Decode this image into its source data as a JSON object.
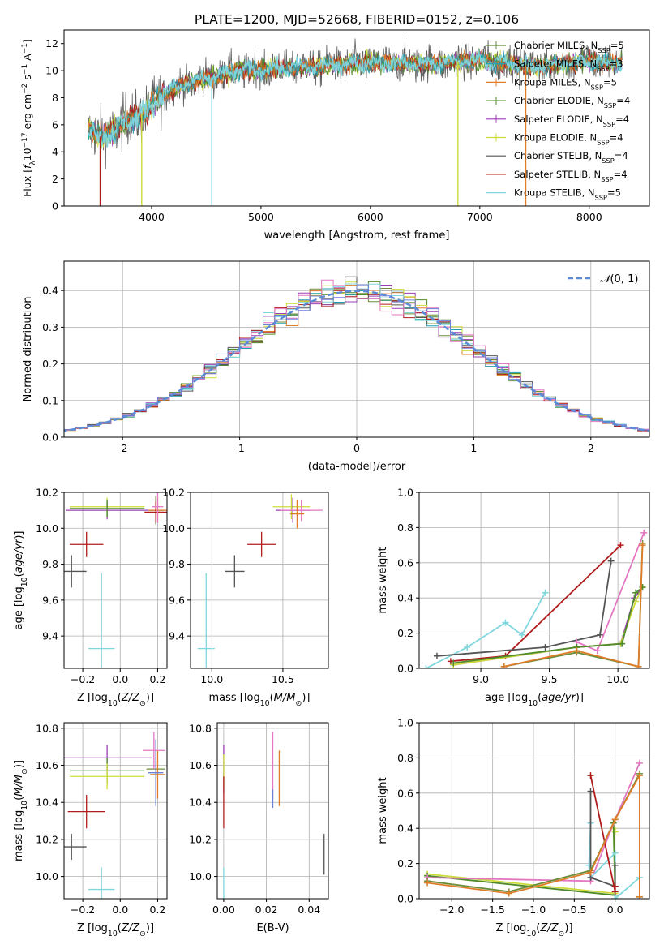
{
  "figure_title": "PLATE=1200, MJD=52668, FIBERID=0152, z=0.106",
  "colors": {
    "chabrier_miles": "#6b8e3a",
    "salpeter_miles": "#1f9fb0",
    "kroupa_miles": "#e07b28",
    "chabrier_elodie": "#4f8a2b",
    "salpeter_elodie": "#9b3fb5",
    "kroupa_elodie": "#cddc39",
    "chabrier_stelib": "#555555",
    "salpeter_stelib": "#b01c1c",
    "kroupa_stelib": "#7fd6dd",
    "gauss": "#5b8bd6",
    "pink": "#e377c2",
    "blue": "#6a7fd8",
    "orange": "#e07b28",
    "grid": "#b0b0b0"
  },
  "chart_data": [
    {
      "id": "spectrum",
      "type": "line",
      "title": "",
      "xlabel": "wavelength [Angstrom, rest frame]",
      "ylabel": "Flux [f_λ10^-17 erg cm^-2 s^-1 A^-1]",
      "xlim": [
        3200,
        8550
      ],
      "ylim": [
        0,
        13
      ],
      "xticks": [
        4000,
        5000,
        6000,
        7000,
        8000
      ],
      "yticks": [
        0,
        2,
        4,
        6,
        8,
        10,
        12
      ],
      "grid": false,
      "legend_position": "top-right",
      "legend": [
        "Chabrier MILES, N_SSP=5",
        "Salpeter MILES, N_SSP=3",
        "Kroupa MILES, N_SSP=5",
        "Chabrier ELODIE, N_SSP=4",
        "Salpeter ELODIE, N_SSP=4",
        "Kroupa ELODIE, N_SSP=4",
        "Chabrier STELIB, N_SSP=4",
        "Salpeter STELIB, N_SSP=4",
        "Kroupa STELIB, N_SSP=5"
      ],
      "continuum": {
        "x": [
          3420,
          3550,
          3650,
          3800,
          3950,
          4100,
          4300,
          4600,
          4800,
          5000,
          5500,
          6000,
          6500,
          7000,
          7500,
          8000,
          8300
        ],
        "y": [
          5.8,
          5.0,
          5.6,
          6.4,
          7.0,
          8.3,
          9.0,
          9.6,
          10.0,
          10.1,
          10.3,
          10.6,
          10.5,
          10.8,
          10.3,
          10.7,
          10.5
        ]
      },
      "dips": [
        {
          "x": 3530,
          "y": 0
        },
        {
          "x": 3910,
          "y": 0
        },
        {
          "x": 4550,
          "y": 0
        },
        {
          "x": 6800,
          "y": 0
        },
        {
          "x": 7420,
          "y": 0
        }
      ]
    },
    {
      "id": "residual_hist",
      "type": "line",
      "xlabel": "(data-model)/error",
      "ylabel": "Normed distribution",
      "xlim": [
        -2.5,
        2.5
      ],
      "ylim": [
        0,
        0.48
      ],
      "xticks": [
        -2,
        -1,
        0,
        1,
        2
      ],
      "yticks": [
        0.0,
        0.1,
        0.2,
        0.3,
        0.4
      ],
      "grid": true,
      "legend": [
        "𝒩(0, 1)"
      ],
      "legend_position": "top-right",
      "bin_width": 0.1
    },
    {
      "id": "age_vs_Z",
      "type": "scatter",
      "xlabel": "Z [log10(Z/Z☉)]",
      "ylabel": "age [log10(age/yr)]",
      "xlim": [
        -0.3,
        0.25
      ],
      "ylim": [
        9.22,
        10.2
      ],
      "xticks": [
        -0.2,
        0.0,
        0.2
      ],
      "yticks": [
        9.4,
        9.6,
        9.8,
        10.0,
        10.2
      ],
      "xticklabels": [
        "−0.2",
        "0.0",
        "0.2"
      ],
      "grid": true,
      "points": [
        {
          "x": 0.19,
          "y": 10.1,
          "xerr": 0.04,
          "yerr": 0.08,
          "color": "chabrier_miles"
        },
        {
          "x": 0.2,
          "y": 10.1,
          "xerr": 0.05,
          "yerr": 0.07,
          "color": "kroupa_miles"
        },
        {
          "x": 0.19,
          "y": 10.09,
          "xerr": 0.06,
          "yerr": 0.06,
          "color": "salpeter_stelib"
        },
        {
          "x": -0.07,
          "y": 10.12,
          "xerr": 0.2,
          "yerr": 0.05,
          "color": "kroupa_elodie"
        },
        {
          "x": -0.07,
          "y": 10.1,
          "xerr": 0.22,
          "yerr": 0.05,
          "color": "salpeter_elodie"
        },
        {
          "x": -0.07,
          "y": 10.11,
          "xerr": 0.2,
          "yerr": 0.05,
          "color": "chabrier_elodie"
        },
        {
          "x": 0.2,
          "y": 10.12,
          "xerr": 0.03,
          "yerr": 0.09,
          "color": "pink"
        },
        {
          "x": -0.18,
          "y": 9.91,
          "xerr": 0.09,
          "yerr": 0.07,
          "color": "salpeter_stelib"
        },
        {
          "x": -0.26,
          "y": 9.76,
          "xerr": 0.08,
          "yerr": 0.09,
          "color": "chabrier_stelib"
        },
        {
          "x": -0.1,
          "y": 9.33,
          "xerr": 0.07,
          "yerr": 0.42,
          "color": "kroupa_stelib"
        }
      ]
    },
    {
      "id": "age_vs_mass",
      "type": "scatter",
      "xlabel": "mass [log10(M/M☉)]",
      "ylabel": "",
      "xlim": [
        9.85,
        10.82
      ],
      "ylim": [
        9.22,
        10.2
      ],
      "xticks": [
        10.0,
        10.5
      ],
      "yticks": [
        9.4,
        9.6,
        9.8,
        10.0,
        10.2
      ],
      "grid": true,
      "points": [
        {
          "x": 10.56,
          "y": 10.12,
          "xerr": 0.13,
          "yerr": 0.07,
          "color": "kroupa_elodie"
        },
        {
          "x": 10.57,
          "y": 10.1,
          "xerr": 0.12,
          "yerr": 0.07,
          "color": "salpeter_elodie"
        },
        {
          "x": 10.63,
          "y": 10.1,
          "xerr": 0.15,
          "yerr": 0.06,
          "color": "pink"
        },
        {
          "x": 10.6,
          "y": 10.08,
          "xerr": 0.05,
          "yerr": 0.08,
          "color": "kroupa_miles"
        },
        {
          "x": 10.35,
          "y": 9.91,
          "xerr": 0.1,
          "yerr": 0.07,
          "color": "salpeter_stelib"
        },
        {
          "x": 10.16,
          "y": 9.76,
          "xerr": 0.07,
          "yerr": 0.09,
          "color": "chabrier_stelib"
        },
        {
          "x": 9.96,
          "y": 9.33,
          "xerr": 0.06,
          "yerr": 0.42,
          "color": "kroupa_stelib"
        }
      ]
    },
    {
      "id": "massweight_vs_age",
      "type": "line",
      "xlabel": "age [log10(age/yr)]",
      "ylabel": "mass weight",
      "xlim": [
        8.55,
        10.23
      ],
      "ylim": [
        0,
        1.0
      ],
      "xticks": [
        9.0,
        9.5,
        10.0
      ],
      "yticks": [
        0.0,
        0.2,
        0.4,
        0.6,
        0.8,
        1.0
      ],
      "grid": true,
      "series": [
        {
          "color": "kroupa_stelib",
          "x": [
            8.6,
            8.9,
            9.18,
            9.3,
            9.47
          ],
          "y": [
            0.0,
            0.12,
            0.26,
            0.19,
            0.43
          ]
        },
        {
          "color": "salpeter_stelib",
          "x": [
            8.78,
            9.18,
            10.02
          ],
          "y": [
            0.04,
            0.07,
            0.7
          ]
        },
        {
          "color": "chabrier_stelib",
          "x": [
            8.68,
            9.47,
            9.87,
            9.95
          ],
          "y": [
            0.07,
            0.12,
            0.19,
            0.61
          ]
        },
        {
          "color": "pink",
          "x": [
            9.7,
            9.85,
            10.19
          ],
          "y": [
            0.15,
            0.1,
            0.77
          ]
        },
        {
          "color": "salpeter_elodie",
          "x": [
            8.8,
            9.7,
            10.02,
            10.12,
            10.18
          ],
          "y": [
            0.02,
            0.12,
            0.14,
            0.4,
            0.46
          ]
        },
        {
          "color": "kroupa_elodie",
          "x": [
            8.8,
            9.7,
            10.02,
            10.13,
            10.18
          ],
          "y": [
            0.02,
            0.12,
            0.14,
            0.38,
            0.46
          ]
        },
        {
          "color": "chabrier_elodie",
          "x": [
            8.8,
            9.7,
            10.03,
            10.13,
            10.18
          ],
          "y": [
            0.03,
            0.12,
            0.14,
            0.43,
            0.46
          ]
        },
        {
          "color": "chabrier_miles",
          "x": [
            9.17,
            9.7,
            10.15,
            10.18
          ],
          "y": [
            0.01,
            0.09,
            0.01,
            0.71
          ]
        },
        {
          "color": "kroupa_miles",
          "x": [
            9.17,
            9.7,
            10.15,
            10.18
          ],
          "y": [
            0.01,
            0.1,
            0.01,
            0.7
          ]
        }
      ]
    },
    {
      "id": "mass_vs_Z",
      "type": "scatter",
      "xlabel": "Z [log10(Z/Z☉)]",
      "ylabel": "mass [log10(M/M☉)]",
      "xlim": [
        -0.3,
        0.25
      ],
      "ylim": [
        9.88,
        10.83
      ],
      "xticks": [
        -0.2,
        0.0,
        0.2
      ],
      "yticks": [
        10.0,
        10.2,
        10.4,
        10.6,
        10.8
      ],
      "xticklabels": [
        "−0.2",
        "0.0",
        "0.2"
      ],
      "grid": true,
      "points": [
        {
          "x": 0.19,
          "y": 10.58,
          "xerr": 0.05,
          "yerr": 0.14,
          "color": "chabrier_miles"
        },
        {
          "x": 0.2,
          "y": 10.55,
          "xerr": 0.04,
          "yerr": 0.13,
          "color": "kroupa_miles"
        },
        {
          "x": 0.19,
          "y": 10.56,
          "xerr": 0.04,
          "yerr": 0.18,
          "color": "blue"
        },
        {
          "x": 0.18,
          "y": 10.68,
          "xerr": 0.06,
          "yerr": 0.1,
          "color": "pink"
        },
        {
          "x": -0.07,
          "y": 10.64,
          "xerr": 0.24,
          "yerr": 0.07,
          "color": "salpeter_elodie"
        },
        {
          "x": -0.07,
          "y": 10.57,
          "xerr": 0.2,
          "yerr": 0.07,
          "color": "chabrier_elodie"
        },
        {
          "x": -0.07,
          "y": 10.54,
          "xerr": 0.2,
          "yerr": 0.07,
          "color": "kroupa_elodie"
        },
        {
          "x": -0.18,
          "y": 10.35,
          "xerr": 0.1,
          "yerr": 0.09,
          "color": "salpeter_stelib"
        },
        {
          "x": -0.26,
          "y": 10.16,
          "xerr": 0.08,
          "yerr": 0.07,
          "color": "chabrier_stelib"
        },
        {
          "x": -0.1,
          "y": 9.93,
          "xerr": 0.07,
          "yerr": 0.12,
          "color": "kroupa_stelib"
        }
      ]
    },
    {
      "id": "mass_vs_ebv",
      "type": "scatter",
      "xlabel": "E(B-V)",
      "ylabel": "",
      "xlim": [
        -0.003,
        0.049
      ],
      "ylim": [
        9.88,
        10.83
      ],
      "xticks": [
        0.0,
        0.02,
        0.04
      ],
      "yticks": [
        10.0,
        10.2,
        10.4,
        10.6,
        10.8
      ],
      "xticklabels": [
        "0.00",
        "0.02",
        "0.04"
      ],
      "grid": true,
      "points": [
        {
          "x": 0.0,
          "y": 10.58,
          "yerr": 0.13,
          "color": "salpeter_elodie"
        },
        {
          "x": 0.0,
          "y": 10.57,
          "yerr": 0.09,
          "color": "kroupa_elodie"
        },
        {
          "x": 0.0,
          "y": 10.4,
          "yerr": 0.14,
          "color": "salpeter_stelib"
        },
        {
          "x": 0.0,
          "y": 9.95,
          "yerr": 0.1,
          "color": "kroupa_stelib"
        },
        {
          "x": 0.023,
          "y": 10.6,
          "yerr": 0.18,
          "color": "pink"
        },
        {
          "x": 0.023,
          "y": 10.42,
          "yerr": 0.05,
          "color": "blue"
        },
        {
          "x": 0.026,
          "y": 10.53,
          "yerr": 0.15,
          "color": "kroupa_miles"
        },
        {
          "x": 0.047,
          "y": 10.12,
          "yerr": 0.11,
          "color": "chabrier_stelib"
        }
      ]
    },
    {
      "id": "massweight_vs_Z",
      "type": "line",
      "xlabel": "Z [log10(Z/Z☉)]",
      "ylabel": "mass weight",
      "xlim": [
        -2.4,
        0.42
      ],
      "ylim": [
        0,
        1.0
      ],
      "xticks": [
        -2.0,
        -1.5,
        -1.0,
        -0.5,
        0.0
      ],
      "xticklabels": [
        "−2.0",
        "−1.5",
        "−1.0",
        "−0.5",
        "0.0"
      ],
      "yticks": [
        0.0,
        0.2,
        0.4,
        0.6,
        0.8,
        1.0
      ],
      "grid": true,
      "series": [
        {
          "color": "kroupa_elodie",
          "x": [
            -2.3,
            0.0,
            -0.02,
            0.0
          ],
          "y": [
            0.14,
            0.03,
            0.4,
            0.38
          ]
        },
        {
          "color": "chabrier_elodie",
          "x": [
            -2.3,
            0.0,
            -0.02
          ],
          "y": [
            0.13,
            0.02,
            0.43
          ]
        },
        {
          "color": "pink",
          "x": [
            -2.3,
            -0.3,
            0.0,
            0.3
          ],
          "y": [
            0.12,
            0.1,
            0.45,
            0.77
          ]
        },
        {
          "color": "kroupa_stelib",
          "x": [
            -0.3,
            -0.32,
            -0.3,
            0.0,
            0.0,
            0.3
          ],
          "y": [
            0.43,
            0.19,
            0.12,
            0.26,
            0.0,
            0.12
          ]
        },
        {
          "color": "chabrier_stelib",
          "x": [
            -0.3,
            -0.3,
            0.0,
            0.0
          ],
          "y": [
            0.61,
            0.12,
            0.07,
            0.19
          ]
        },
        {
          "color": "salpeter_stelib",
          "x": [
            -0.3,
            0.0,
            0.0
          ],
          "y": [
            0.7,
            0.04,
            0.07
          ]
        },
        {
          "color": "chabrier_miles",
          "x": [
            -2.3,
            -1.3,
            -0.3,
            0.0,
            0.3,
            0.3
          ],
          "y": [
            0.1,
            0.04,
            0.16,
            0.45,
            0.71,
            0.01
          ]
        },
        {
          "color": "kroupa_miles",
          "x": [
            -2.3,
            -1.3,
            -0.3,
            0.0,
            0.3,
            0.3
          ],
          "y": [
            0.09,
            0.03,
            0.15,
            0.45,
            0.7,
            0.01
          ]
        }
      ]
    }
  ]
}
